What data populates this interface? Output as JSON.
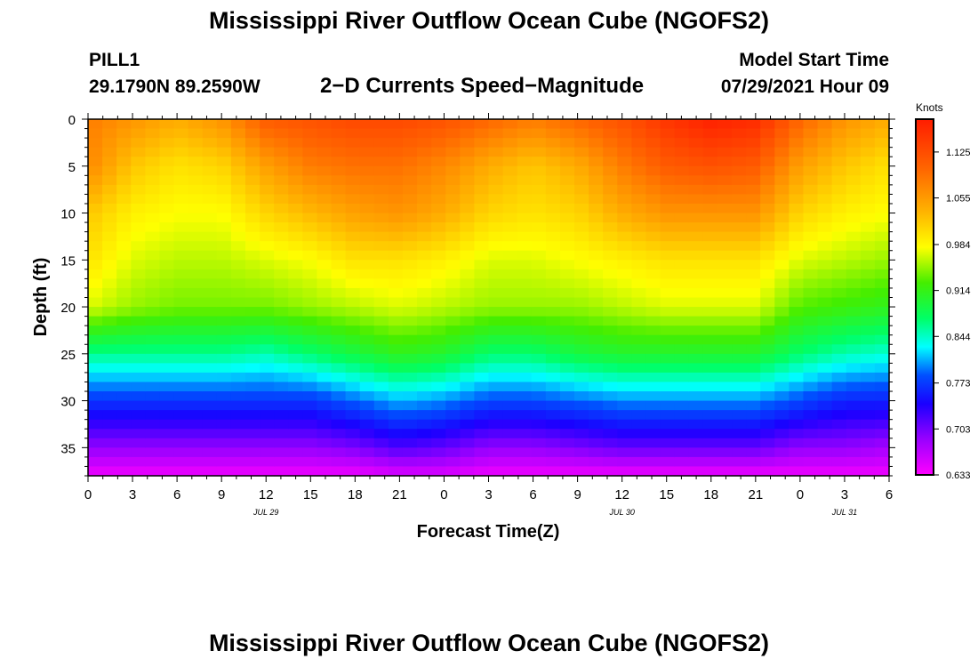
{
  "header": {
    "title": "Mississippi River Outflow Ocean Cube (NGOFS2)",
    "station_id": "PILL1",
    "station_coords": "29.1790N  89.2590W",
    "subtitle": "2−D Currents Speed−Magnitude",
    "model_start_label": "Model Start Time",
    "model_start_value": "07/29/2021 Hour 09"
  },
  "footer": {
    "title": "Mississippi River Outflow Ocean Cube (NGOFS2)"
  },
  "chart_data": {
    "type": "heatmap",
    "title": "2−D Currents Speed−Magnitude",
    "xlabel": "Forecast Time(Z)",
    "ylabel": "Depth (ft)",
    "x_tick_labels": [
      "0",
      "3",
      "6",
      "9",
      "12",
      "15",
      "18",
      "21",
      "0",
      "3",
      "6",
      "9",
      "12",
      "15",
      "18",
      "21",
      "0",
      "3",
      "6"
    ],
    "x_range_hours": [
      0,
      54
    ],
    "date_labels": [
      {
        "label": "JUL 29",
        "hour": 12
      },
      {
        "label": "JUL 30",
        "hour": 36
      },
      {
        "label": "JUL 31",
        "hour": 51
      }
    ],
    "y_ticks": [
      0,
      5,
      10,
      15,
      20,
      25,
      30,
      35
    ],
    "y_range_ft": [
      0,
      38
    ],
    "y_reversed": true,
    "colorbar": {
      "unit": "Knots",
      "min": 0.633,
      "max": 1.175,
      "tick_labels": [
        "1.125",
        "1.055",
        "0.984",
        "0.914",
        "0.844",
        "0.773",
        "0.703",
        "0.633"
      ],
      "tick_values": [
        1.125,
        1.055,
        0.984,
        0.914,
        0.844,
        0.773,
        0.703,
        0.633
      ]
    },
    "speed_field": {
      "note": "Estimated current speed (knots) at depth rows for selected forecast hours; interpolated between.",
      "hours": [
        0,
        3,
        6,
        9,
        12,
        15,
        18,
        21,
        24,
        27,
        30,
        33,
        36,
        39,
        42,
        45,
        48,
        51,
        54
      ],
      "depths_ft": [
        0,
        5,
        10,
        15,
        20,
        25,
        30,
        35,
        38
      ],
      "values": [
        [
          1.08,
          1.07,
          1.02,
          1.0,
          0.97,
          0.86,
          0.77,
          0.69,
          0.64
        ],
        [
          1.06,
          1.02,
          0.99,
          0.97,
          0.95,
          0.86,
          0.77,
          0.69,
          0.64
        ],
        [
          1.04,
          1.0,
          0.98,
          0.96,
          0.94,
          0.86,
          0.77,
          0.69,
          0.64
        ],
        [
          1.06,
          1.01,
          0.98,
          0.96,
          0.94,
          0.86,
          0.77,
          0.69,
          0.64
        ],
        [
          1.11,
          1.05,
          1.01,
          0.97,
          0.94,
          0.85,
          0.77,
          0.69,
          0.64
        ],
        [
          1.12,
          1.08,
          1.03,
          0.98,
          0.95,
          0.87,
          0.77,
          0.69,
          0.64
        ],
        [
          1.13,
          1.09,
          1.05,
          1.0,
          0.96,
          0.89,
          0.79,
          0.7,
          0.64
        ],
        [
          1.13,
          1.09,
          1.06,
          1.0,
          0.97,
          0.91,
          0.81,
          0.72,
          0.65
        ],
        [
          1.12,
          1.07,
          1.04,
          0.99,
          0.96,
          0.9,
          0.8,
          0.71,
          0.65
        ],
        [
          1.1,
          1.04,
          1.01,
          0.97,
          0.95,
          0.87,
          0.78,
          0.69,
          0.64
        ],
        [
          1.08,
          1.02,
          1.0,
          0.97,
          0.95,
          0.87,
          0.78,
          0.69,
          0.64
        ],
        [
          1.1,
          1.04,
          1.01,
          0.98,
          0.95,
          0.89,
          0.79,
          0.7,
          0.64
        ],
        [
          1.12,
          1.08,
          1.04,
          0.99,
          0.96,
          0.9,
          0.8,
          0.71,
          0.64
        ],
        [
          1.15,
          1.11,
          1.06,
          1.0,
          0.97,
          0.9,
          0.8,
          0.71,
          0.64
        ],
        [
          1.17,
          1.12,
          1.06,
          1.0,
          0.97,
          0.9,
          0.8,
          0.71,
          0.64
        ],
        [
          1.16,
          1.11,
          1.06,
          1.0,
          0.97,
          0.9,
          0.8,
          0.71,
          0.64
        ],
        [
          1.1,
          1.05,
          1.01,
          0.97,
          0.93,
          0.87,
          0.78,
          0.69,
          0.64
        ],
        [
          1.06,
          1.02,
          0.99,
          0.96,
          0.92,
          0.85,
          0.76,
          0.69,
          0.64
        ],
        [
          1.04,
          1.0,
          0.98,
          0.95,
          0.91,
          0.84,
          0.76,
          0.68,
          0.64
        ]
      ]
    }
  }
}
